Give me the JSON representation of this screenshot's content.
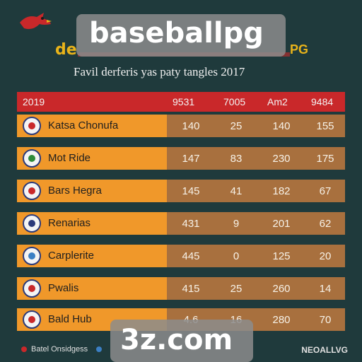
{
  "header": {
    "title_left": "de",
    "title_right": "PG",
    "subtitle": "Favil derferis yas paty tangles 2017"
  },
  "table": {
    "columns": [
      "2019",
      "9531",
      "7005",
      "Am2",
      "9484"
    ],
    "rows": [
      {
        "team": "Katsa Chonufa",
        "stats": [
          "140",
          "25",
          "140",
          "155"
        ],
        "logo_color": "#c9282a"
      },
      {
        "team": "Mot Ride",
        "stats": [
          "147",
          "83",
          "230",
          "175"
        ],
        "logo_color": "#2e8b3a"
      },
      {
        "team": "Bars Hegra",
        "stats": [
          "145",
          "41",
          "182",
          "67"
        ],
        "logo_color": "#c9282a"
      },
      {
        "team": "Renarias",
        "stats": [
          "431",
          "9",
          "201",
          "62"
        ],
        "logo_color": "#2b3a7a"
      },
      {
        "team": "Carplerite",
        "stats": [
          "445",
          "0",
          "125",
          "20"
        ],
        "logo_color": "#3b7fc4"
      },
      {
        "team": "Pwalis",
        "stats": [
          "415",
          "25",
          "260",
          "14"
        ],
        "logo_color": "#c9282a"
      },
      {
        "team": "Bald Hub",
        "stats": [
          "4.6",
          "16",
          "280",
          "70"
        ],
        "logo_color": "#c9282a"
      }
    ]
  },
  "watermarks": {
    "top": "baseballpg",
    "bottom": "3z.com"
  },
  "footer": {
    "left": "Batel Onsidgess",
    "right": "NEOALLVG"
  }
}
